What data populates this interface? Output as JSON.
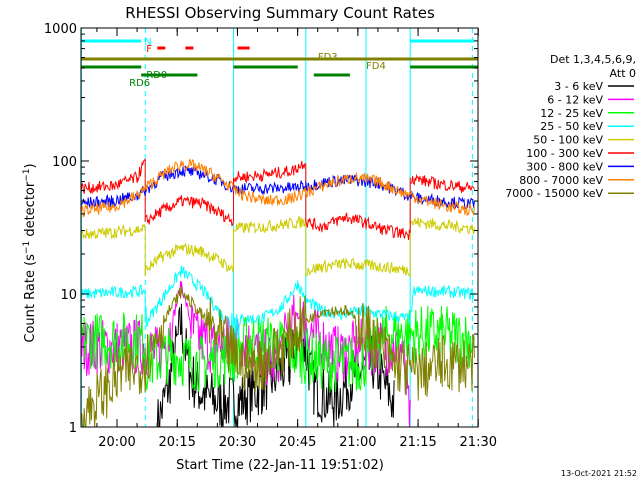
{
  "chart_data": {
    "type": "line",
    "title": "RHESSI Observing Summary Count Rates",
    "xlabel": "Start Time (22-Jan-11 19:51:02)",
    "ylabel": "Count Rate (s⁻¹ detector⁻¹)",
    "ylabel_main": "Count Rate (s",
    "ylabel_sup1": "−1",
    "ylabel_mid": " detector",
    "ylabel_sup2": "−1",
    "ylabel_end": ")",
    "timestamp": "13-Oct-2021 21:52",
    "x_range_minutes_after_start": [
      0,
      98.9
    ],
    "x_ticks": [
      {
        "label": "20:00",
        "t": 8.97
      },
      {
        "label": "20:15",
        "t": 23.97
      },
      {
        "label": "20:30",
        "t": 38.97
      },
      {
        "label": "20:45",
        "t": 53.97
      },
      {
        "label": "21:00",
        "t": 68.97
      },
      {
        "label": "21:15",
        "t": 83.97
      },
      {
        "label": "21:30",
        "t": 98.97
      }
    ],
    "y_scale": "log",
    "y_range": [
      1,
      1000
    ],
    "y_ticks": [
      {
        "label": "1",
        "v": 1
      },
      {
        "label": "10",
        "v": 10
      },
      {
        "label": "100",
        "v": 100
      },
      {
        "label": "1000",
        "v": 1000
      }
    ],
    "legend_title": [
      "Det 1,3,4,5,6,9,",
      "Att 0"
    ],
    "series": [
      {
        "name": "3 - 6 keV",
        "color": "#000000",
        "points": [
          [
            19,
            1.0
          ],
          [
            22,
            2.2
          ],
          [
            25,
            6.0
          ],
          [
            27,
            2.5
          ],
          [
            30,
            1.8
          ],
          [
            35,
            1.5
          ],
          [
            40,
            1.6
          ],
          [
            45,
            2.0
          ],
          [
            52,
            3.0
          ],
          [
            55,
            5.0
          ],
          [
            58,
            2.0
          ],
          [
            63,
            1.5
          ],
          [
            68,
            2.5
          ],
          [
            73,
            3.0
          ],
          [
            78,
            1.5
          ]
        ]
      },
      {
        "name": "6 - 12 keV",
        "color": "#ff00ff",
        "points": [
          [
            0,
            4.0
          ],
          [
            16,
            4.0
          ],
          [
            19,
            3.5
          ],
          [
            22,
            5.0
          ],
          [
            25,
            12.0
          ],
          [
            28,
            5.0
          ],
          [
            33,
            4.0
          ],
          [
            40,
            4.5
          ],
          [
            48,
            3.0
          ],
          [
            54,
            7.0
          ],
          [
            58,
            5.0
          ],
          [
            64,
            3.5
          ],
          [
            70,
            4.0
          ],
          [
            76,
            4.0
          ],
          [
            80,
            4.0
          ],
          [
            82,
            1.0
          ]
        ]
      },
      {
        "name": "12 - 25 keV",
        "color": "#00ff00",
        "points": [
          [
            0,
            4.5
          ],
          [
            16,
            4.5
          ],
          [
            16,
            3.0
          ],
          [
            22,
            3.5
          ],
          [
            30,
            3.0
          ],
          [
            38,
            3.5
          ],
          [
            42,
            4.5
          ],
          [
            50,
            4.0
          ],
          [
            55,
            3.5
          ],
          [
            61,
            3.0
          ],
          [
            70,
            3.0
          ],
          [
            76,
            5.0
          ],
          [
            90,
            5.0
          ],
          [
            98,
            4.5
          ]
        ]
      },
      {
        "name": "25 - 50 keV",
        "color": "#00ffff",
        "points": [
          [
            0,
            10.0
          ],
          [
            16,
            10.5
          ],
          [
            16,
            6.0
          ],
          [
            20,
            9.0
          ],
          [
            25,
            15.0
          ],
          [
            30,
            11.0
          ],
          [
            35,
            7.0
          ],
          [
            38,
            6.0
          ],
          [
            40,
            6.5
          ],
          [
            45,
            6.5
          ],
          [
            50,
            8.0
          ],
          [
            54,
            12.0
          ],
          [
            56,
            9.0
          ],
          [
            60,
            7.5
          ],
          [
            65,
            7.0
          ],
          [
            70,
            7.5
          ],
          [
            75,
            7.0
          ],
          [
            82,
            6.5
          ],
          [
            83,
            10.5
          ],
          [
            90,
            10.5
          ],
          [
            98,
            10.0
          ]
        ]
      },
      {
        "name": "50 - 100 keV",
        "color": "#cccc00",
        "points": [
          [
            0,
            28.0
          ],
          [
            8,
            29.0
          ],
          [
            16,
            31.0
          ],
          [
            16,
            15.0
          ],
          [
            20,
            19.0
          ],
          [
            25,
            22.0
          ],
          [
            30,
            21.0
          ],
          [
            35,
            17.5
          ],
          [
            38,
            15.0
          ],
          [
            38,
            31.0
          ],
          [
            45,
            32.0
          ],
          [
            53,
            34.0
          ],
          [
            56,
            35.0
          ],
          [
            56,
            15.0
          ],
          [
            60,
            16.0
          ],
          [
            66,
            17.0
          ],
          [
            70,
            16.5
          ],
          [
            75,
            16.0
          ],
          [
            82,
            15.0
          ],
          [
            82,
            35.0
          ],
          [
            90,
            33.0
          ],
          [
            98,
            31.0
          ]
        ]
      },
      {
        "name": "100 - 300 keV",
        "color": "#ff0000",
        "points": [
          [
            0,
            62.0
          ],
          [
            8,
            65.0
          ],
          [
            14,
            75.0
          ],
          [
            16,
            100.0
          ],
          [
            16,
            35.0
          ],
          [
            20,
            42.0
          ],
          [
            25,
            50.0
          ],
          [
            30,
            48.0
          ],
          [
            35,
            40.0
          ],
          [
            38,
            35.0
          ],
          [
            38,
            75.0
          ],
          [
            45,
            78.0
          ],
          [
            53,
            85.0
          ],
          [
            56,
            100.0
          ],
          [
            56,
            35.0
          ],
          [
            60,
            32.0
          ],
          [
            66,
            38.0
          ],
          [
            70,
            35.0
          ],
          [
            76,
            30.0
          ],
          [
            82,
            28.0
          ],
          [
            82,
            75.0
          ],
          [
            88,
            68.0
          ],
          [
            98,
            62.0
          ]
        ]
      },
      {
        "name": "300 - 800 keV",
        "color": "#0000ff",
        "points": [
          [
            0,
            48.0
          ],
          [
            8,
            50.0
          ],
          [
            14,
            55.0
          ],
          [
            16,
            60.0
          ],
          [
            20,
            75.0
          ],
          [
            25,
            85.0
          ],
          [
            30,
            80.0
          ],
          [
            35,
            70.0
          ],
          [
            38,
            62.0
          ],
          [
            45,
            62.0
          ],
          [
            53,
            63.0
          ],
          [
            56,
            65.0
          ],
          [
            62,
            70.0
          ],
          [
            68,
            72.0
          ],
          [
            74,
            68.0
          ],
          [
            80,
            58.0
          ],
          [
            84,
            52.0
          ],
          [
            90,
            50.0
          ],
          [
            98,
            47.0
          ]
        ]
      },
      {
        "name": "800 - 7000 keV",
        "color": "#ff8000",
        "points": [
          [
            0,
            42.0
          ],
          [
            8,
            45.0
          ],
          [
            14,
            55.0
          ],
          [
            18,
            70.0
          ],
          [
            22,
            85.0
          ],
          [
            25,
            95.0
          ],
          [
            28,
            92.0
          ],
          [
            32,
            82.0
          ],
          [
            36,
            68.0
          ],
          [
            40,
            56.0
          ],
          [
            46,
            50.0
          ],
          [
            52,
            52.0
          ],
          [
            56,
            58.0
          ],
          [
            62,
            68.0
          ],
          [
            68,
            75.0
          ],
          [
            74,
            70.0
          ],
          [
            80,
            58.0
          ],
          [
            86,
            50.0
          ],
          [
            92,
            45.0
          ],
          [
            98,
            42.0
          ]
        ]
      },
      {
        "name": "7000 - 15000 keV",
        "color": "#808000",
        "points": [
          [
            0,
            1.2
          ],
          [
            10,
            2.5
          ],
          [
            16,
            3.0
          ],
          [
            20,
            6.0
          ],
          [
            25,
            10.5
          ],
          [
            30,
            7.0
          ],
          [
            35,
            4.5
          ],
          [
            40,
            3.0
          ],
          [
            45,
            3.0
          ],
          [
            50,
            4.0
          ],
          [
            55,
            6.0
          ],
          [
            60,
            7.5
          ],
          [
            66,
            7.5
          ],
          [
            72,
            5.0
          ],
          [
            78,
            3.0
          ],
          [
            84,
            2.5
          ],
          [
            90,
            3.0
          ],
          [
            98,
            3.0
          ]
        ]
      }
    ],
    "flag_bars": [
      {
        "label": "N",
        "color": "#00ffff",
        "segments": [
          [
            0,
            15.0
          ],
          [
            82,
            98.0
          ]
        ]
      },
      {
        "label": "F",
        "color": "#ff0000",
        "segments": [
          [
            19,
            21
          ],
          [
            26,
            28
          ],
          [
            39,
            42
          ]
        ]
      },
      {
        "label": "FD3",
        "color": "#808000",
        "segments": [
          [
            0,
            98.9
          ]
        ]
      },
      {
        "label": "FD4",
        "color": "#808000",
        "segments": [
          [
            72,
            98.9
          ]
        ]
      },
      {
        "label": "RD0",
        "color": "#008000",
        "segments": [
          [
            0,
            15.0
          ],
          [
            38,
            54.0
          ],
          [
            82,
            98.9
          ]
        ]
      },
      {
        "label": "RD6",
        "color": "#008000",
        "segments": [
          [
            15,
            29.0
          ],
          [
            58,
            67.0
          ]
        ]
      }
    ],
    "vertical_markers": [
      {
        "t": 0.1,
        "style": "solid",
        "color": "#00ffff"
      },
      {
        "t": 16.0,
        "style": "dashed",
        "color": "#00ffff"
      },
      {
        "t": 38.0,
        "style": "solid",
        "color": "#00ffff"
      },
      {
        "t": 56.0,
        "style": "solid",
        "color": "#00ffff"
      },
      {
        "t": 71.0,
        "style": "solid",
        "color": "#00ffff"
      },
      {
        "t": 82.0,
        "style": "solid",
        "color": "#00ffff"
      },
      {
        "t": 97.5,
        "style": "dashed",
        "color": "#00ffff"
      }
    ]
  }
}
